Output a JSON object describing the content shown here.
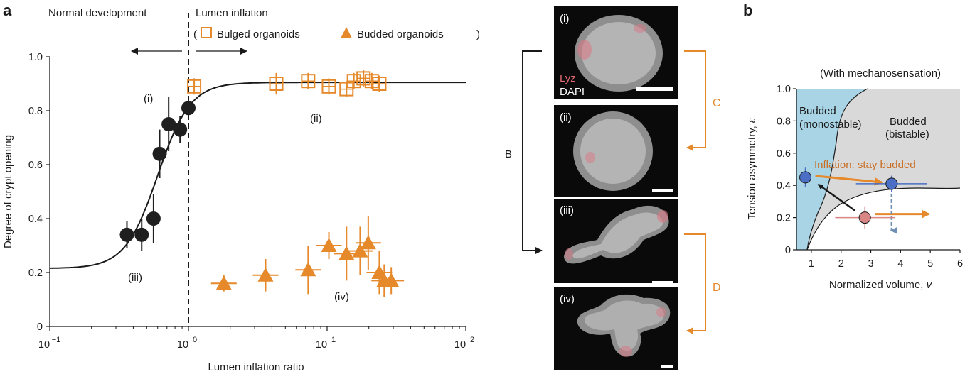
{
  "panel_a": {
    "label": "a",
    "left_region_label": "Normal development",
    "right_region_label": "Lumen inflation",
    "legend": {
      "open_paren": "(",
      "close_paren": ")",
      "bulged": "Bulged organoids",
      "budded": "Budded  organoids"
    },
    "annotations": {
      "i": "(i)",
      "ii": "(ii)",
      "iii": "(iii)",
      "iv": "(iv)"
    },
    "ylabel": "Degree of crypt opening",
    "xlabel": "Lumen inflation ratio",
    "x_ticks": [
      {
        "base": "10",
        "exp": "−1"
      },
      {
        "base": "10",
        "exp": "0"
      },
      {
        "base": "10",
        "exp": "1"
      },
      {
        "base": "10",
        "exp": "2"
      }
    ],
    "y_ticks": [
      "0",
      "0.2",
      "0.4",
      "0.6",
      "0.8",
      "1.0"
    ],
    "colors": {
      "black_points": "#1f1f1f",
      "orange": "#e5892b"
    }
  },
  "images": {
    "panels": [
      "(i)",
      "(ii)",
      "(iii)",
      "(iv)"
    ],
    "stain_lyz": "Lyz",
    "stain_dapi": "DAPI",
    "bracket_b": "B",
    "bracket_c": "C",
    "bracket_d": "D"
  },
  "panel_b": {
    "label": "b",
    "title": "(With mechanosensation)",
    "ylabel_text": "Tension asymmetry, ",
    "ylabel_symbol": "ε",
    "xlabel_text": "Normalized volume, ",
    "xlabel_symbol": "v",
    "region_monostable_1": "Budded",
    "region_monostable_2": "(monostable)",
    "region_bistable_1": "Budded",
    "region_bistable_2": "(bistable)",
    "arrow_label": "Inflation: stay budded",
    "x_ticks": [
      "1",
      "2",
      "3",
      "4",
      "5",
      "6"
    ],
    "y_ticks": [
      "0",
      "0.2",
      "0.4",
      "0.6",
      "0.8",
      "1.0"
    ],
    "colors": {
      "monostable": "#a8d4e6",
      "bistable": "#d9d9d9",
      "blue_point": "#4a6fc4",
      "red_point": "#d98585",
      "arrow": "#e5892b"
    }
  },
  "chart_data": [
    {
      "type": "scatter",
      "title": "",
      "xlabel": "Lumen inflation ratio",
      "ylabel": "Degree of crypt opening",
      "xscale": "log",
      "xlim": [
        0.1,
        100
      ],
      "ylim": [
        0,
        1.0
      ],
      "threshold_x": 1.0,
      "series": [
        {
          "name": "Normal development",
          "marker": "circle",
          "color": "#1f1f1f",
          "points": [
            {
              "x": 0.36,
              "y": 0.34,
              "err": 0.05
            },
            {
              "x": 0.46,
              "y": 0.34,
              "err": 0.06
            },
            {
              "x": 0.56,
              "y": 0.4,
              "err": 0.09
            },
            {
              "x": 0.62,
              "y": 0.64,
              "err": 0.09
            },
            {
              "x": 0.72,
              "y": 0.75,
              "err": 0.1
            },
            {
              "x": 0.87,
              "y": 0.73,
              "err": 0.05
            },
            {
              "x": 1.0,
              "y": 0.81,
              "err": 0.03
            }
          ]
        },
        {
          "name": "Bulged organoids",
          "marker": "open-square",
          "color": "#e5892b",
          "points": [
            {
              "x": 1.1,
              "y": 0.89,
              "err": 0.03
            },
            {
              "x": 4.3,
              "y": 0.9,
              "err": 0.04
            },
            {
              "x": 7.3,
              "y": 0.91,
              "err": 0.03
            },
            {
              "x": 10.3,
              "y": 0.89,
              "err": 0.03
            },
            {
              "x": 13.8,
              "y": 0.88,
              "err": 0.03
            },
            {
              "x": 15.6,
              "y": 0.91,
              "err": 0.03
            },
            {
              "x": 18.3,
              "y": 0.92,
              "err": 0.03
            },
            {
              "x": 21.0,
              "y": 0.91,
              "err": 0.03
            },
            {
              "x": 23.8,
              "y": 0.9,
              "err": 0.03
            }
          ]
        },
        {
          "name": "Budded organoids",
          "marker": "triangle",
          "color": "#e5892b",
          "points": [
            {
              "x": 1.8,
              "y": 0.16,
              "err": 0.03
            },
            {
              "x": 3.6,
              "y": 0.19,
              "err": 0.06
            },
            {
              "x": 7.3,
              "y": 0.21,
              "err": 0.09
            },
            {
              "x": 10.3,
              "y": 0.3,
              "err": 0.05
            },
            {
              "x": 13.8,
              "y": 0.27,
              "err": 0.1
            },
            {
              "x": 17.3,
              "y": 0.28,
              "err": 0.09
            },
            {
              "x": 19.8,
              "y": 0.31,
              "err": 0.1
            },
            {
              "x": 23.8,
              "y": 0.2,
              "err": 0.08
            },
            {
              "x": 25.8,
              "y": 0.17,
              "err": 0.06
            },
            {
              "x": 29.0,
              "y": 0.17,
              "err": 0.05
            }
          ]
        }
      ],
      "fit_curve": {
        "baseline": 0.215,
        "plateau": 0.905,
        "midpoint": 0.6,
        "steepness": 8.5
      }
    },
    {
      "type": "phase-diagram",
      "title": "(With mechanosensation)",
      "xlabel": "Normalized volume, v",
      "ylabel": "Tension asymmetry, ε",
      "xlim": [
        0.5,
        6
      ],
      "ylim": [
        0,
        1.0
      ],
      "points": [
        {
          "name": "blue-left",
          "x": 0.8,
          "y": 0.45,
          "color": "#4a6fc4",
          "xerr": 0.15,
          "yerr": 0.06
        },
        {
          "name": "blue-right",
          "x": 3.7,
          "y": 0.41,
          "color": "#4a6fc4",
          "xerr": 1.2,
          "yerr": 0.05
        },
        {
          "name": "red",
          "x": 2.8,
          "y": 0.2,
          "color": "#d98585",
          "xerr": 1.0,
          "yerr": 0.07
        }
      ]
    }
  ]
}
